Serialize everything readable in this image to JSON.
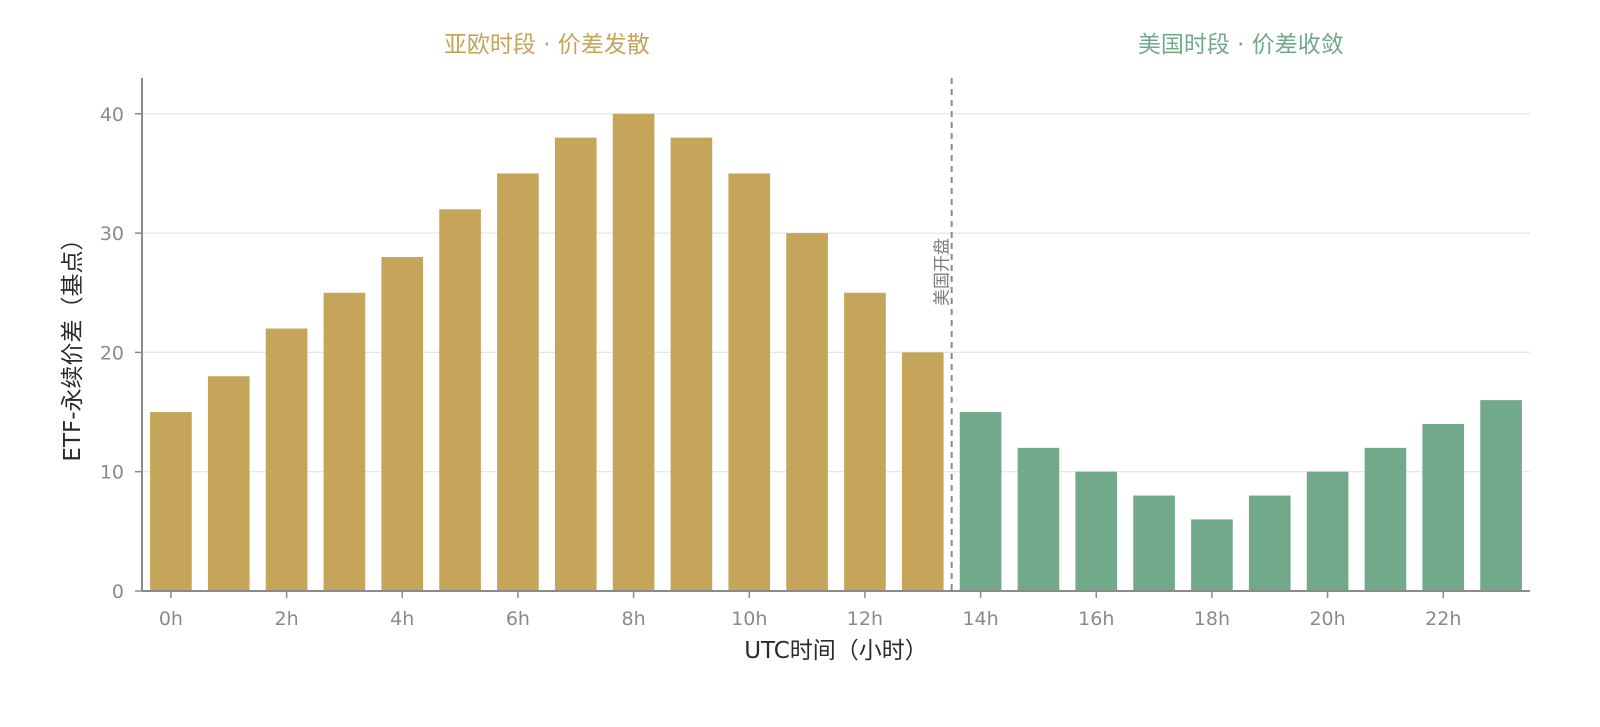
{
  "chart_data": {
    "type": "bar",
    "xlabel": "UTC时间（小时）",
    "ylabel": "ETF-永续价差（基点）",
    "ylim": [
      0,
      43
    ],
    "yticks": [
      0,
      10,
      20,
      30,
      40
    ],
    "grid": true,
    "categories": [
      "0h",
      "1h",
      "2h",
      "3h",
      "4h",
      "5h",
      "6h",
      "7h",
      "8h",
      "9h",
      "10h",
      "11h",
      "12h",
      "13h",
      "14h",
      "15h",
      "16h",
      "17h",
      "18h",
      "19h",
      "20h",
      "21h",
      "22h",
      "23h"
    ],
    "values": [
      15,
      18,
      22,
      25,
      28,
      32,
      35,
      38,
      40,
      38,
      35,
      30,
      25,
      20,
      15,
      12,
      10,
      8,
      6,
      8,
      10,
      12,
      14,
      16
    ],
    "x_tick_labels": [
      "0h",
      "2h",
      "4h",
      "6h",
      "8h",
      "10h",
      "12h",
      "14h",
      "16h",
      "18h",
      "20h",
      "22h"
    ],
    "sessions": [
      {
        "label": "亚欧时段 · 价差发散",
        "start_hour": 0,
        "end_hour": 13,
        "color": "#C4A55A"
      },
      {
        "label": "美国时段 · 价差收敛",
        "start_hour": 14,
        "end_hour": 23,
        "color": "#72A98A"
      }
    ],
    "annotation": {
      "text": "美国开盘",
      "at_hour": 13.5,
      "style": "dashed vertical line",
      "color": "#8a8a8a"
    },
    "axis_color": "#8a8a8a",
    "grid_color": "#e6e6e6"
  }
}
